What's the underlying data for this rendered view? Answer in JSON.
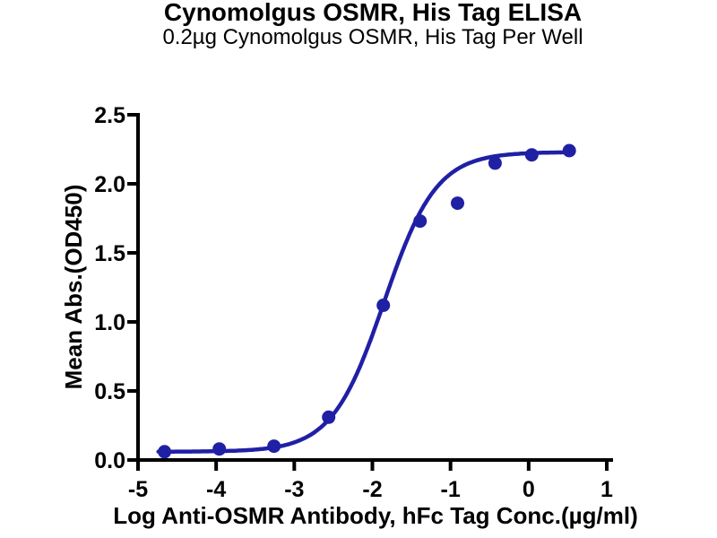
{
  "chart_data": {
    "type": "scatter",
    "title": "Cynomolgus OSMR, His Tag ELISA",
    "subtitle": "0.2µg Cynomolgus OSMR, His Tag Per Well",
    "xlabel": "Log Anti-OSMR Antibody, hFc Tag Conc.(µg/ml)",
    "ylabel": "Mean Abs.(OD450)",
    "xlim": [
      -5,
      1
    ],
    "ylim": [
      0,
      2.5
    ],
    "x_tick_labels": [
      "-5",
      "-4",
      "-3",
      "-2",
      "-1",
      "0",
      "1"
    ],
    "y_tick_labels": [
      "0.0",
      "0.5",
      "1.0",
      "1.5",
      "2.0",
      "2.5"
    ],
    "grid": false,
    "legend": false,
    "colors": {
      "series": "#2020A5",
      "axis": "#000000",
      "text": "#000000"
    },
    "series": [
      {
        "name": "Anti-OSMR Antibody, hFc Tag",
        "marker": "circle",
        "points": [
          [
            -4.66,
            0.06
          ],
          [
            -3.96,
            0.08
          ],
          [
            -3.26,
            0.1
          ],
          [
            -2.56,
            0.31
          ],
          [
            -1.86,
            1.12
          ],
          [
            -1.39,
            1.73
          ],
          [
            -0.91,
            1.86
          ],
          [
            -0.43,
            2.15
          ],
          [
            0.04,
            2.21
          ],
          [
            0.52,
            2.24
          ]
        ]
      }
    ],
    "fit_curve": {
      "model": "4PL",
      "bottom": 0.06,
      "top": 2.23,
      "log_ec50": -1.85,
      "hill": 1.3,
      "x_start": -4.74,
      "x_end": 0.51
    }
  }
}
